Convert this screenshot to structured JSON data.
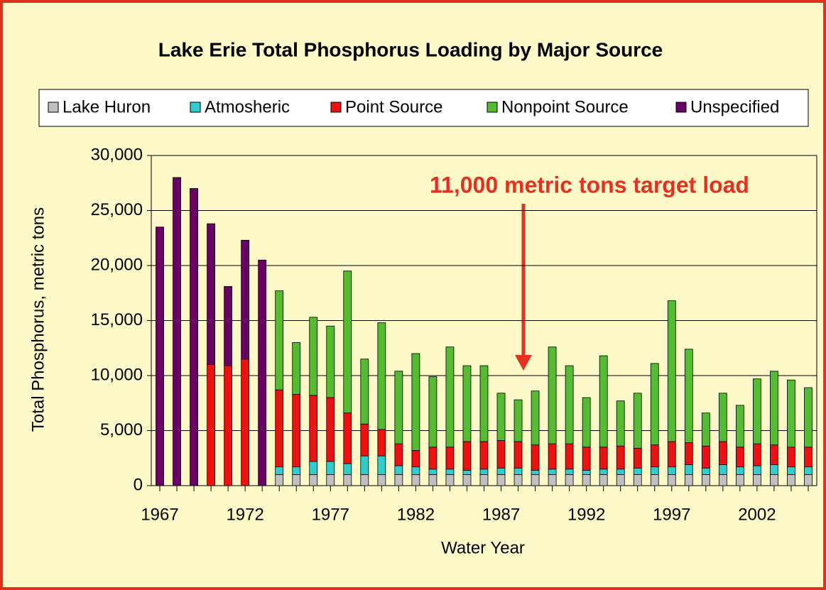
{
  "chart_data": {
    "type": "stacked_bar",
    "title": "Lake Erie Total Phosphorus Loading by Major Source",
    "x_label": "Water Year",
    "y_label": "Total Phosphorus, metric tons",
    "annotation": "11,000 metric tons target load",
    "categories": [
      "1967",
      null,
      null,
      null,
      null,
      "1972",
      null,
      null,
      null,
      null,
      "1977",
      null,
      null,
      null,
      null,
      "1982",
      null,
      null,
      null,
      null,
      "1987",
      null,
      null,
      null,
      null,
      "1992",
      null,
      null,
      null,
      null,
      "1997",
      null,
      null,
      null,
      null,
      "2002",
      null,
      null,
      null
    ],
    "series": [
      {
        "name": "Lake Huron",
        "color": "#c0c0c0",
        "values": [
          null,
          null,
          null,
          null,
          null,
          null,
          null,
          1000,
          1000,
          1000,
          1000,
          1000,
          1000,
          1000,
          1000,
          1000,
          1000,
          1000,
          1000,
          1000,
          1000,
          1000,
          1000,
          1000,
          1000,
          1000,
          1000,
          1000,
          1000,
          1000,
          1000,
          1000,
          1000,
          1000,
          1000,
          1000,
          1000,
          1000,
          1000
        ]
      },
      {
        "name": "Atmosheric",
        "color": "#33cccc",
        "values": [
          null,
          null,
          null,
          null,
          null,
          null,
          null,
          700,
          700,
          1200,
          1200,
          1000,
          1700,
          1700,
          800,
          700,
          500,
          500,
          400,
          500,
          600,
          600,
          400,
          500,
          500,
          400,
          500,
          500,
          600,
          700,
          700,
          900,
          600,
          900,
          700,
          800,
          900,
          700,
          700
        ]
      },
      {
        "name": "Point Source",
        "color": "#ee1111",
        "values": [
          null,
          null,
          null,
          11000,
          10900,
          11500,
          null,
          7000,
          6600,
          6000,
          5800,
          4600,
          2900,
          2400,
          2000,
          1500,
          2000,
          2000,
          2600,
          2500,
          2500,
          2400,
          2300,
          2300,
          2300,
          2100,
          2000,
          2100,
          1800,
          2000,
          2300,
          2000,
          2000,
          2100,
          1800,
          2000,
          1800,
          1800,
          1800
        ]
      },
      {
        "name": "Nonpoint Source",
        "color": "#55bb33",
        "values": [
          null,
          null,
          null,
          null,
          null,
          null,
          null,
          9000,
          4700,
          7100,
          6500,
          12900,
          5900,
          9700,
          6600,
          8800,
          6400,
          9100,
          6900,
          6900,
          4300,
          3800,
          4900,
          8800,
          7100,
          4500,
          8300,
          4100,
          5000,
          7400,
          12800,
          8500,
          3000,
          4400,
          3800,
          5900,
          6700,
          6100,
          5400
        ]
      },
      {
        "name": "Unspecified",
        "color": "#660066",
        "values": [
          23500,
          28000,
          27000,
          12800,
          7200,
          10800,
          20500,
          null,
          null,
          null,
          null,
          null,
          null,
          null,
          null,
          null,
          null,
          null,
          null,
          null,
          null,
          null,
          null,
          null,
          null,
          null,
          null,
          null,
          null,
          null,
          null,
          null,
          null,
          null,
          null,
          null,
          null,
          null,
          null
        ]
      }
    ],
    "ylim": [
      0,
      30000
    ],
    "yticks": [
      0,
      {
        "value": 5000,
        "label": "5,000"
      },
      {
        "value": 10000,
        "label": "10,000"
      },
      {
        "value": 15000,
        "label": "15,000"
      },
      {
        "value": 20000,
        "label": "20,000"
      },
      {
        "value": 25000,
        "label": "25,000"
      },
      {
        "value": 30000,
        "label": "30,000"
      }
    ],
    "grid": true,
    "legend": "top"
  }
}
